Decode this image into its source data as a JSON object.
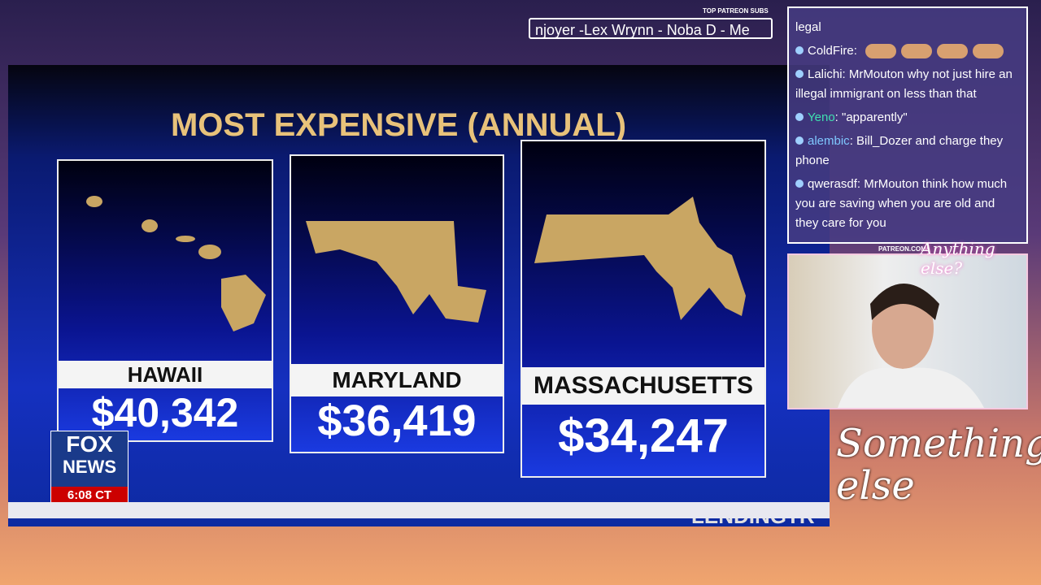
{
  "overlay": {
    "patreon_label": "TOP PATREON SUBS",
    "ticker": "njoyer -Lex Wrynn -  Noba D - Me",
    "patreon_url": "PATREON.COM/",
    "logo_small": "Anything else?",
    "logo_large": "Something else"
  },
  "video": {
    "title": "MOST EXPENSIVE (ANNUAL)",
    "cards": [
      {
        "state": "HAWAII",
        "cost": "$40,342"
      },
      {
        "state": "MARYLAND",
        "cost": "$36,419"
      },
      {
        "state": "MASSACHUSETTS",
        "cost": "$34,247"
      }
    ],
    "network": {
      "top": "FOX",
      "bottom": "NEWS",
      "time": "6:08 CT"
    },
    "source": "LENDINGTR"
  },
  "chat": {
    "messages": [
      {
        "user": "",
        "text": "legal"
      },
      {
        "user": "ColdFire",
        "text": ""
      },
      {
        "user": "Lalichi",
        "text": "MrMouton why not just hire an illegal immigrant on less than that"
      },
      {
        "user": "Yeno",
        "text": "\"apparently\""
      },
      {
        "user": "alembic",
        "text": "Bill_Dozer and charge they phone"
      },
      {
        "user": "qwerasdf",
        "text": "MrMouton think how much you are saving when you are old and they care for you"
      }
    ]
  }
}
